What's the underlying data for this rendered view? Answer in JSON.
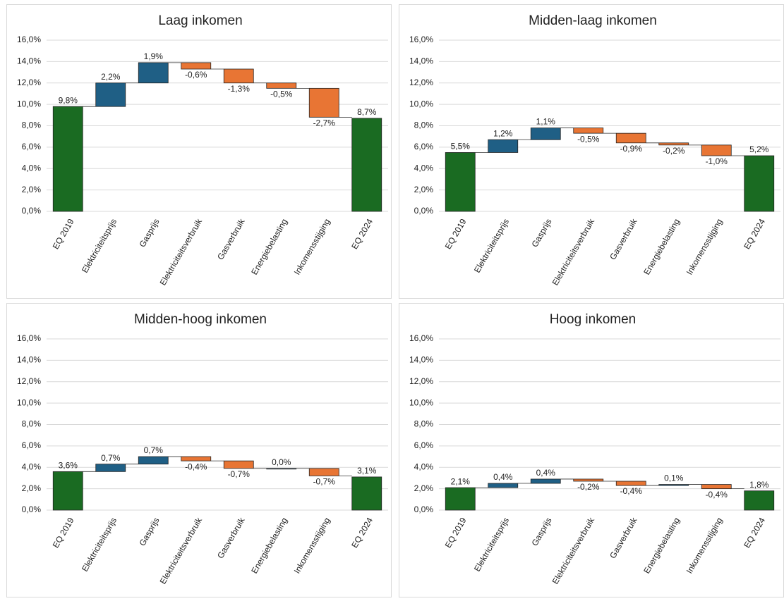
{
  "chart_data": [
    {
      "type": "waterfall",
      "title": "Laag inkomen",
      "categories": [
        "EQ 2019",
        "Elektriciteitsprijs",
        "Gasprijs",
        "Elektriciteitsverbruik",
        "Gasverbruik",
        "Energiebelasting",
        "Inkomensstijging",
        "EQ 2024"
      ],
      "values": [
        9.8,
        2.2,
        1.9,
        -0.6,
        -1.3,
        -0.5,
        -2.7,
        8.7
      ],
      "value_labels": [
        "9,8%",
        "2,2%",
        "1,9%",
        "-0,6%",
        "-1,3%",
        "-0,5%",
        "-2,7%",
        "8,7%"
      ],
      "ylim": [
        0,
        16
      ],
      "yticks": [
        {
          "value": 0,
          "label": "0,0%"
        },
        {
          "value": 2,
          "label": "2,0%"
        },
        {
          "value": 4,
          "label": "4,0%"
        },
        {
          "value": 6,
          "label": "6,0%"
        },
        {
          "value": 8,
          "label": "8,0%"
        },
        {
          "value": 10,
          "label": "10,0%"
        },
        {
          "value": 12,
          "label": "12,0%"
        },
        {
          "value": 14,
          "label": "14,0%"
        },
        {
          "value": 16,
          "label": "16,0%"
        }
      ],
      "grid": true,
      "colors": {
        "total": "#1a6b22",
        "increase": "#1f5f85",
        "decrease": "#e87534"
      }
    },
    {
      "type": "waterfall",
      "title": "Midden-laag inkomen",
      "categories": [
        "EQ 2019",
        "Elektriciteitsprijs",
        "Gasprijs",
        "Elektriciteitsverbruik",
        "Gasverbruik",
        "Energiebelasting",
        "Inkomensstijging",
        "EQ 2024"
      ],
      "values": [
        5.5,
        1.2,
        1.1,
        -0.5,
        -0.9,
        -0.2,
        -1.0,
        5.2
      ],
      "value_labels": [
        "5,5%",
        "1,2%",
        "1,1%",
        "-0,5%",
        "-0,9%",
        "-0,2%",
        "-1,0%",
        "5,2%"
      ],
      "ylim": [
        0,
        16
      ],
      "yticks": [
        {
          "value": 0,
          "label": "0,0%"
        },
        {
          "value": 2,
          "label": "2,0%"
        },
        {
          "value": 4,
          "label": "4,0%"
        },
        {
          "value": 6,
          "label": "6,0%"
        },
        {
          "value": 8,
          "label": "8,0%"
        },
        {
          "value": 10,
          "label": "10,0%"
        },
        {
          "value": 12,
          "label": "12,0%"
        },
        {
          "value": 14,
          "label": "14,0%"
        },
        {
          "value": 16,
          "label": "16,0%"
        }
      ],
      "grid": true,
      "colors": {
        "total": "#1a6b22",
        "increase": "#1f5f85",
        "decrease": "#e87534"
      }
    },
    {
      "type": "waterfall",
      "title": "Midden-hoog inkomen",
      "categories": [
        "EQ 2019",
        "Elektriciteitsprijs",
        "Gasprijs",
        "Elektriciteitsverbruik",
        "Gasverbruik",
        "Energiebelasting",
        "Inkomensstijging",
        "EQ 2024"
      ],
      "values": [
        3.6,
        0.7,
        0.7,
        -0.4,
        -0.7,
        0.0,
        -0.7,
        3.1
      ],
      "value_labels": [
        "3,6%",
        "0,7%",
        "0,7%",
        "-0,4%",
        "-0,7%",
        "0,0%",
        "-0,7%",
        "3,1%"
      ],
      "ylim": [
        0,
        16
      ],
      "yticks": [
        {
          "value": 0,
          "label": "0,0%"
        },
        {
          "value": 2,
          "label": "2,0%"
        },
        {
          "value": 4,
          "label": "4,0%"
        },
        {
          "value": 6,
          "label": "6,0%"
        },
        {
          "value": 8,
          "label": "8,0%"
        },
        {
          "value": 10,
          "label": "10,0%"
        },
        {
          "value": 12,
          "label": "12,0%"
        },
        {
          "value": 14,
          "label": "14,0%"
        },
        {
          "value": 16,
          "label": "16,0%"
        }
      ],
      "grid": true,
      "colors": {
        "total": "#1a6b22",
        "increase": "#1f5f85",
        "decrease": "#e87534"
      }
    },
    {
      "type": "waterfall",
      "title": "Hoog inkomen",
      "categories": [
        "EQ 2019",
        "Elektriciteitsprijs",
        "Gasprijs",
        "Elektriciteitsverbruik",
        "Gasverbruik",
        "Energiebelasting",
        "Inkomensstijging",
        "EQ 2024"
      ],
      "values": [
        2.1,
        0.4,
        0.4,
        -0.2,
        -0.4,
        0.1,
        -0.4,
        1.8
      ],
      "value_labels": [
        "2,1%",
        "0,4%",
        "0,4%",
        "-0,2%",
        "-0,4%",
        "0,1%",
        "-0,4%",
        "1,8%"
      ],
      "ylim": [
        0,
        16
      ],
      "yticks": [
        {
          "value": 0,
          "label": "0,0%"
        },
        {
          "value": 2,
          "label": "2,0%"
        },
        {
          "value": 4,
          "label": "4,0%"
        },
        {
          "value": 6,
          "label": "6,0%"
        },
        {
          "value": 8,
          "label": "8,0%"
        },
        {
          "value": 10,
          "label": "10,0%"
        },
        {
          "value": 12,
          "label": "12,0%"
        },
        {
          "value": 14,
          "label": "14,0%"
        },
        {
          "value": 16,
          "label": "16,0%"
        }
      ],
      "grid": true,
      "colors": {
        "total": "#1a6b22",
        "increase": "#1f5f85",
        "decrease": "#e87534"
      }
    }
  ]
}
